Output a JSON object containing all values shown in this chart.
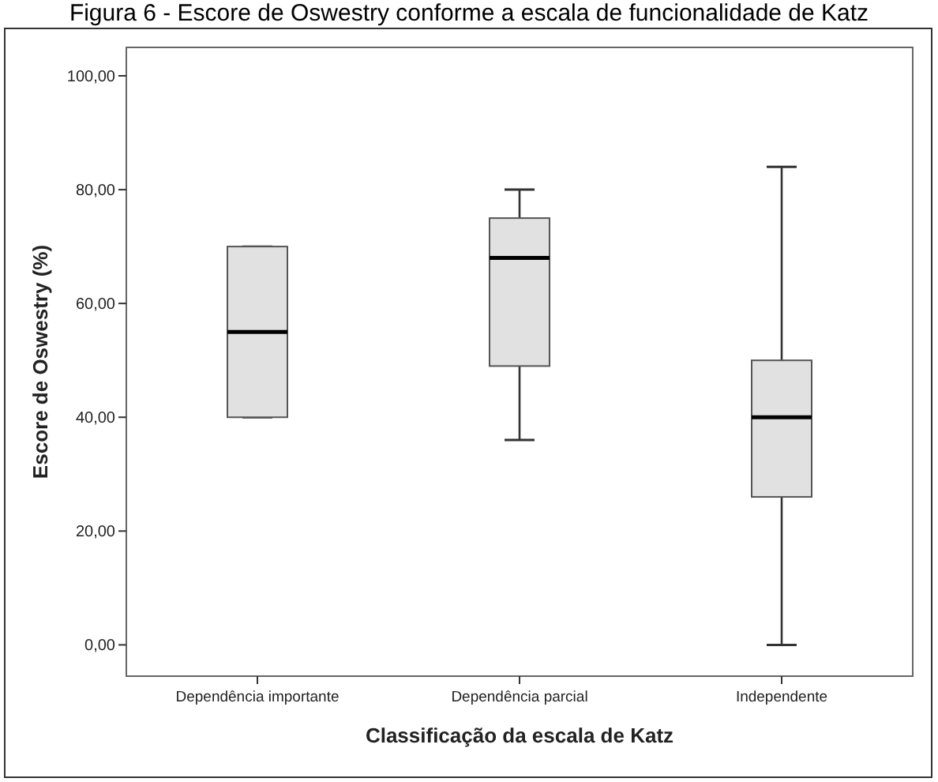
{
  "chart_data": {
    "type": "box",
    "title": "Figura 6 - Escore de Oswestry conforme a escala de funcionalidade de Katz",
    "xlabel": "Classificação da escala de Katz",
    "ylabel": "Escore de Oswestry (%)",
    "categories": [
      "Dependência importante",
      "Dependência parcial",
      "Independente"
    ],
    "color": "#e1e1e1",
    "boxes": [
      {
        "low": 40,
        "q1": 40,
        "median": 55,
        "q3": 70,
        "high": 70
      },
      {
        "low": 36,
        "q1": 49,
        "median": 68,
        "q3": 75,
        "high": 80
      },
      {
        "low": 0,
        "q1": 26,
        "median": 40,
        "q3": 50,
        "high": 84
      }
    ],
    "ylim": [
      -5.5,
      105
    ],
    "yticks": [
      {
        "value": 0,
        "label": "0,00"
      },
      {
        "value": 20,
        "label": "20,00"
      },
      {
        "value": 40,
        "label": "40,00"
      },
      {
        "value": 60,
        "label": "60,00"
      },
      {
        "value": 80,
        "label": "80,00"
      },
      {
        "value": 100,
        "label": "100,00"
      }
    ],
    "grid": false
  }
}
